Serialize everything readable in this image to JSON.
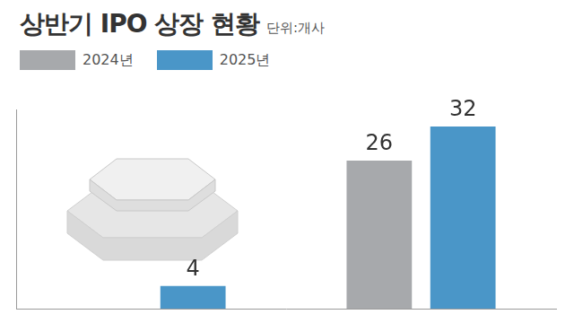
{
  "chart_data": {
    "type": "bar",
    "title": "상반기 IPO 상장 현황",
    "subtitle": "단위:개사",
    "categories": [
      null,
      null
    ],
    "series": [
      {
        "name": "2024년",
        "color": "#a7a9ac",
        "values": [
          null,
          26
        ]
      },
      {
        "name": "2025년",
        "color": "#4a96c8",
        "values": [
          4,
          32
        ]
      }
    ],
    "ylim": [
      0,
      35
    ],
    "data_labels": true,
    "tick_labels": false,
    "grid": false,
    "legend": "top-left"
  }
}
